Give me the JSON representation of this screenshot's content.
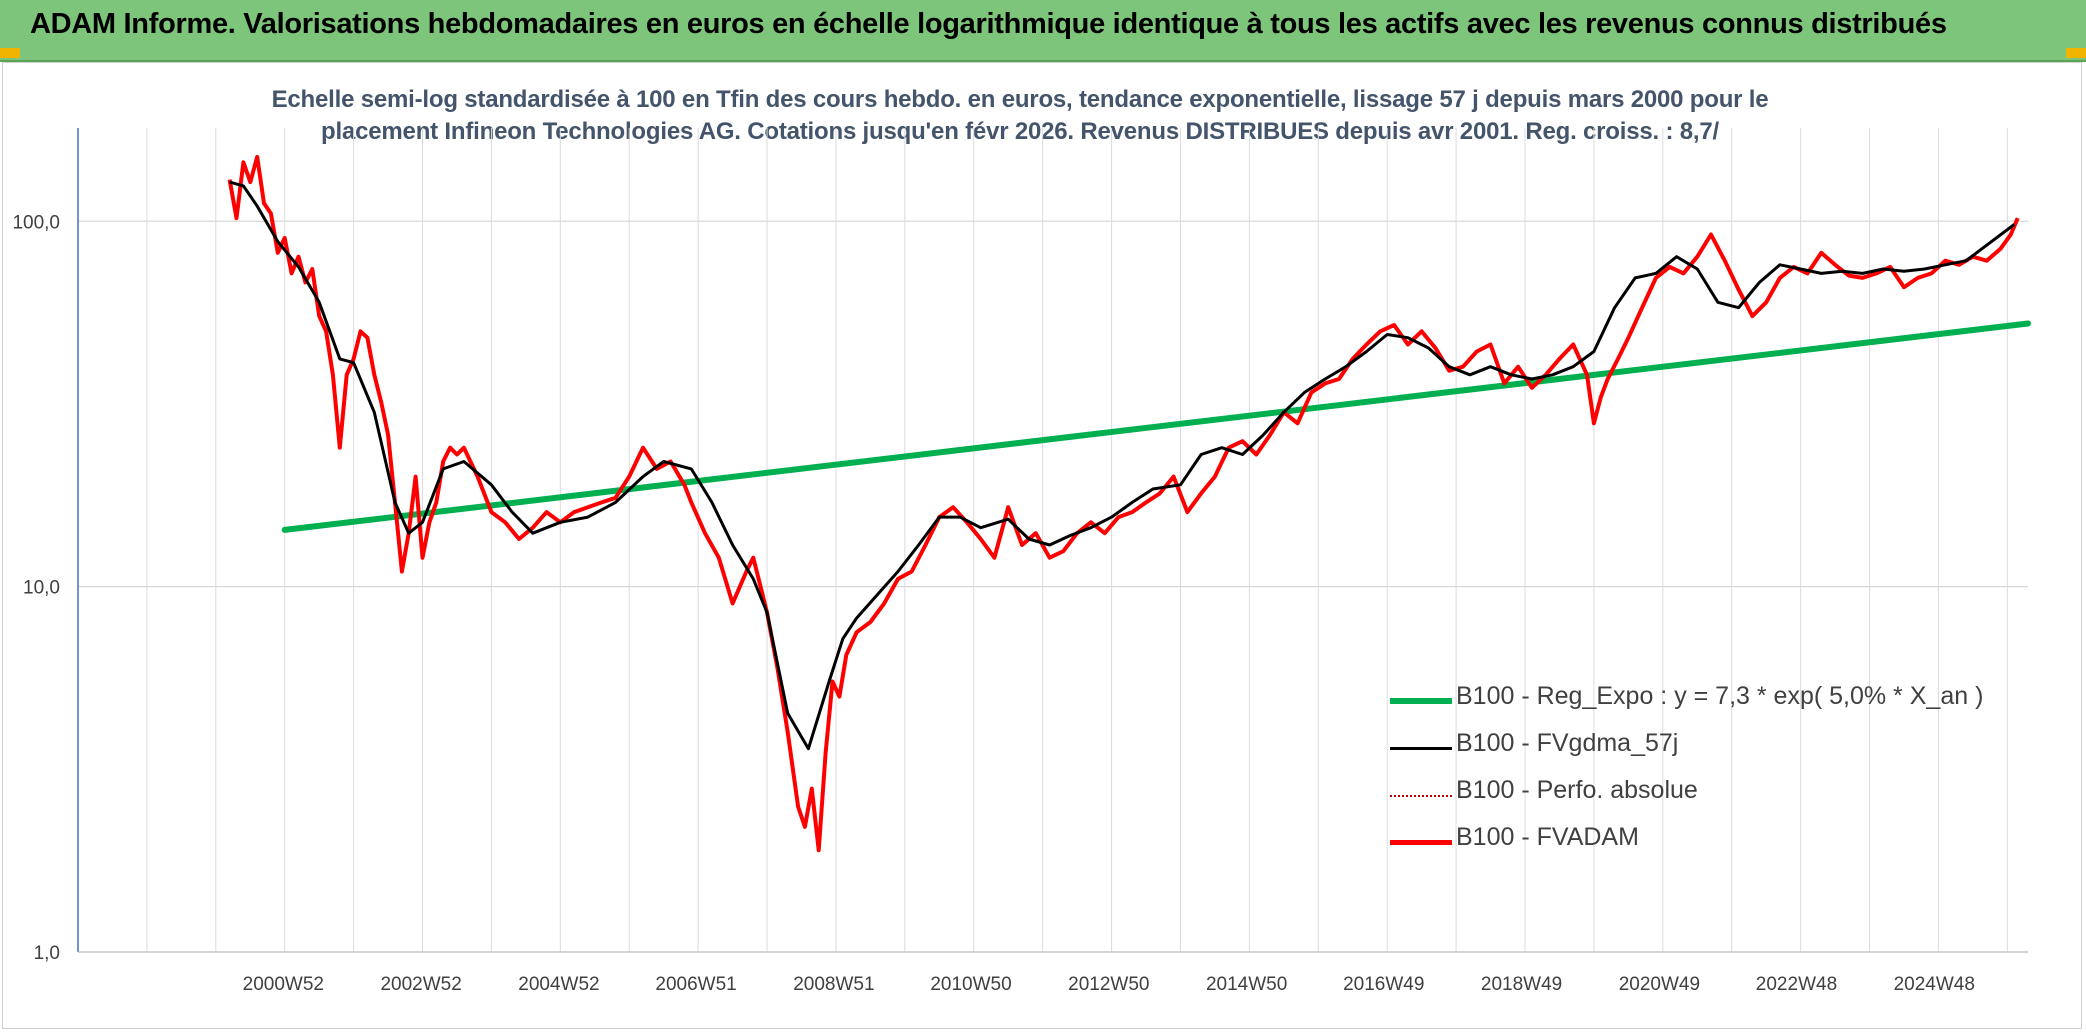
{
  "header": {
    "title": "ADAM Informe. Valorisations hebdomadaires en euros en échelle logarithmique identique à tous les actifs avec les revenus connus distribués"
  },
  "subtitle": {
    "line1": "Echelle semi-log standardisée à 100 en Tfin des cours hebdo. en euros, tendance exponentielle, lissage 57 j depuis mars 2000 pour le",
    "line2": "placement Infineon Technologies AG. Cotations jusqu'en févr 2026. Revenus DISTRIBUES depuis avr 2001. Reg. croiss. : 8,7/"
  },
  "colors": {
    "banner": "#7dc57a",
    "reg_expo": "#00b050",
    "fvgdma": "#000000",
    "perfo": "#c00000",
    "fvadam": "#ff0000",
    "grid": "#d9d9d9",
    "axis": "#4472c4"
  },
  "chart_data": {
    "type": "line",
    "scale": "log",
    "ylim": [
      1,
      180
    ],
    "y_tick_labels": [
      "1,0",
      "10,0",
      "100,0"
    ],
    "x_range": [
      1998.0,
      2026.3
    ],
    "x_tick_labels": [
      "2000W52",
      "2002W52",
      "2004W52",
      "2006W51",
      "2008W51",
      "2010W50",
      "2012W50",
      "2014W50",
      "2016W49",
      "2018W49",
      "2020W49",
      "2022W48",
      "2024W48"
    ],
    "x_tick_years": [
      2000.98,
      2002.98,
      2004.98,
      2006.97,
      2008.97,
      2010.96,
      2012.96,
      2014.96,
      2016.95,
      2018.95,
      2020.95,
      2022.94,
      2024.94
    ],
    "legend_position": "bottom-right",
    "series": [
      {
        "name": "B100 - Reg_Expo : y = 7,3 * exp( 5,0% *  X_an )",
        "style": "trend",
        "x": [
          2001.0,
          2026.3
        ],
        "y": [
          14.3,
          52.5
        ]
      },
      {
        "name": "B100 - FVgdma_57j",
        "style": "smooth",
        "x": [
          2000.2,
          2000.4,
          2000.6,
          2000.9,
          2001.2,
          2001.5,
          2001.8,
          2002.0,
          2002.3,
          2002.6,
          2002.8,
          2003.0,
          2003.3,
          2003.6,
          2004.0,
          2004.3,
          2004.6,
          2005.0,
          2005.4,
          2005.8,
          2006.2,
          2006.5,
          2006.9,
          2007.2,
          2007.5,
          2007.8,
          2008.0,
          2008.3,
          2008.6,
          2008.9,
          2009.1,
          2009.3,
          2009.6,
          2009.9,
          2010.2,
          2010.5,
          2010.8,
          2011.1,
          2011.5,
          2011.8,
          2012.1,
          2012.4,
          2012.7,
          2013.0,
          2013.3,
          2013.6,
          2014.0,
          2014.3,
          2014.6,
          2014.9,
          2015.2,
          2015.5,
          2015.8,
          2016.1,
          2016.4,
          2016.7,
          2017.0,
          2017.3,
          2017.6,
          2017.9,
          2018.2,
          2018.5,
          2018.8,
          2019.1,
          2019.4,
          2019.7,
          2020.0,
          2020.3,
          2020.6,
          2020.9,
          2021.2,
          2021.5,
          2021.8,
          2022.1,
          2022.4,
          2022.7,
          2023.0,
          2023.3,
          2023.6,
          2023.9,
          2024.2,
          2024.5,
          2024.8,
          2025.1,
          2025.4,
          2025.7,
          2026.1
        ],
        "y": [
          128,
          125,
          110,
          88,
          75,
          60,
          42,
          41,
          30,
          17,
          14,
          15,
          21,
          22,
          19,
          16,
          14,
          15,
          15.5,
          17,
          20,
          22,
          21,
          17,
          13,
          10.5,
          8.5,
          4.5,
          3.6,
          5.5,
          7.2,
          8.2,
          9.5,
          11,
          13,
          15.5,
          15.5,
          14.5,
          15.3,
          13.5,
          13,
          13.8,
          14.5,
          15.5,
          17,
          18.5,
          19,
          23,
          24,
          23,
          26,
          30,
          34,
          37,
          40,
          44,
          49,
          48,
          45,
          40,
          38,
          40,
          38,
          37,
          38,
          40,
          44,
          58,
          70,
          72,
          80,
          74,
          60,
          58,
          68,
          76,
          74,
          72,
          73,
          72,
          74,
          73,
          74,
          76,
          78,
          86,
          98
        ]
      },
      {
        "name": "B100 - Perfo. absolue",
        "style": "dotted",
        "x": [],
        "y": []
      },
      {
        "name": "B100 - FVADAM",
        "style": "main",
        "x": [
          2000.2,
          2000.3,
          2000.4,
          2000.5,
          2000.6,
          2000.7,
          2000.8,
          2000.9,
          2001.0,
          2001.1,
          2001.2,
          2001.3,
          2001.4,
          2001.5,
          2001.6,
          2001.7,
          2001.8,
          2001.9,
          2002.0,
          2002.1,
          2002.2,
          2002.3,
          2002.4,
          2002.5,
          2002.6,
          2002.7,
          2002.8,
          2002.9,
          2003.0,
          2003.1,
          2003.2,
          2003.3,
          2003.4,
          2003.5,
          2003.6,
          2003.8,
          2004.0,
          2004.2,
          2004.4,
          2004.6,
          2004.8,
          2005.0,
          2005.2,
          2005.4,
          2005.6,
          2005.8,
          2006.0,
          2006.2,
          2006.4,
          2006.6,
          2006.8,
          2006.9,
          2007.1,
          2007.3,
          2007.5,
          2007.7,
          2007.8,
          2008.0,
          2008.15,
          2008.3,
          2008.45,
          2008.55,
          2008.65,
          2008.75,
          2008.85,
          2008.95,
          2009.05,
          2009.15,
          2009.3,
          2009.5,
          2009.7,
          2009.9,
          2010.1,
          2010.3,
          2010.5,
          2010.7,
          2010.9,
          2011.1,
          2011.3,
          2011.5,
          2011.7,
          2011.9,
          2012.1,
          2012.3,
          2012.5,
          2012.7,
          2012.9,
          2013.1,
          2013.3,
          2013.5,
          2013.7,
          2013.9,
          2014.1,
          2014.3,
          2014.5,
          2014.7,
          2014.9,
          2015.1,
          2015.3,
          2015.5,
          2015.7,
          2015.9,
          2016.1,
          2016.3,
          2016.5,
          2016.7,
          2016.9,
          2017.1,
          2017.3,
          2017.5,
          2017.7,
          2017.9,
          2018.1,
          2018.3,
          2018.5,
          2018.7,
          2018.9,
          2019.1,
          2019.3,
          2019.5,
          2019.7,
          2019.9,
          2020.0,
          2020.1,
          2020.2,
          2020.35,
          2020.5,
          2020.7,
          2020.9,
          2021.1,
          2021.3,
          2021.5,
          2021.7,
          2021.9,
          2022.1,
          2022.3,
          2022.5,
          2022.7,
          2022.9,
          2023.1,
          2023.3,
          2023.5,
          2023.7,
          2023.9,
          2024.1,
          2024.3,
          2024.5,
          2024.7,
          2024.9,
          2025.1,
          2025.3,
          2025.5,
          2025.7,
          2025.9,
          2026.05,
          2026.15
        ],
        "y": [
          130,
          102,
          145,
          128,
          150,
          112,
          105,
          82,
          90,
          72,
          80,
          68,
          74,
          55,
          50,
          38,
          24,
          38,
          42,
          50,
          48,
          38,
          32,
          26,
          17,
          11,
          14,
          20,
          12,
          15,
          17,
          22,
          24,
          23,
          24,
          20,
          16,
          15,
          13.5,
          14.5,
          16,
          15,
          16,
          16.5,
          17,
          17.5,
          20,
          24,
          21,
          22,
          19,
          17,
          14,
          12,
          9,
          11,
          12,
          8.5,
          6,
          4,
          2.5,
          2.2,
          2.8,
          1.9,
          3.5,
          5.5,
          5,
          6.5,
          7.5,
          8,
          9,
          10.5,
          11,
          13,
          15.5,
          16.5,
          15,
          13.5,
          12,
          16.5,
          13,
          14,
          12,
          12.5,
          14,
          15,
          14,
          15.5,
          16,
          17,
          18,
          20,
          16,
          18,
          20,
          24,
          25,
          23,
          26,
          30,
          28,
          34,
          36,
          37,
          42,
          46,
          50,
          52,
          46,
          50,
          45,
          39,
          40,
          44,
          46,
          36,
          40,
          35,
          38,
          42,
          46,
          38,
          28,
          33,
          37,
          42,
          48,
          58,
          70,
          75,
          72,
          80,
          92,
          78,
          65,
          55,
          60,
          70,
          75,
          72,
          82,
          76,
          71,
          70,
          72,
          75,
          66,
          70,
          72,
          78,
          76,
          80,
          78,
          84,
          92,
          102
        ]
      }
    ]
  }
}
